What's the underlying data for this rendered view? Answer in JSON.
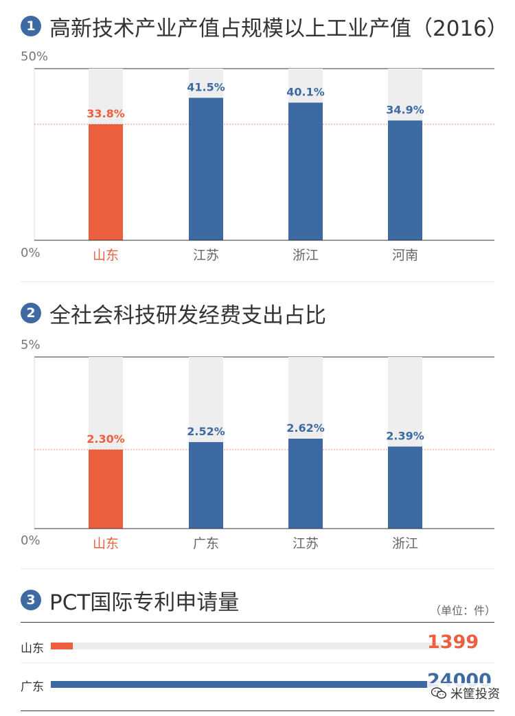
{
  "colors": {
    "highlight": "#ec5f3f",
    "bar": "#3d6aa3",
    "track": "#eeeeee",
    "reference": "#ec8a70"
  },
  "chart_data": [
    {
      "type": "bar",
      "number": "1",
      "title": "高新技术产业产值占规模以上工业产值（2016）",
      "ymax_label": "50%",
      "ymin_label": "0%",
      "ylim": [
        0,
        50
      ],
      "categories": [
        "山东",
        "江苏",
        "浙江",
        "河南"
      ],
      "values": [
        33.8,
        41.5,
        40.1,
        34.9
      ],
      "value_labels": [
        "33.8%",
        "41.5%",
        "40.1%",
        "34.9%"
      ],
      "highlight_index": 0,
      "reference_line": 33.8
    },
    {
      "type": "bar",
      "number": "2",
      "title": "全社会科技研发经费支出占比",
      "ymax_label": "5%",
      "ymin_label": "0%",
      "ylim": [
        0,
        5
      ],
      "categories": [
        "山东",
        "广东",
        "江苏",
        "浙江"
      ],
      "values": [
        2.3,
        2.52,
        2.62,
        2.39
      ],
      "value_labels": [
        "2.30%",
        "2.52%",
        "2.62%",
        "2.39%"
      ],
      "highlight_index": 0,
      "reference_line": 2.3
    },
    {
      "type": "bar",
      "orientation": "horizontal",
      "number": "3",
      "title": "PCT国际专利申请量",
      "unit": "（单位：件）",
      "categories": [
        "山东",
        "广东"
      ],
      "values": [
        1399,
        24000
      ],
      "value_labels": [
        "1399",
        "24000"
      ],
      "xlim": [
        0,
        24000
      ],
      "highlight_index": 0
    }
  ],
  "footer": {
    "brand": "米筐投资"
  }
}
